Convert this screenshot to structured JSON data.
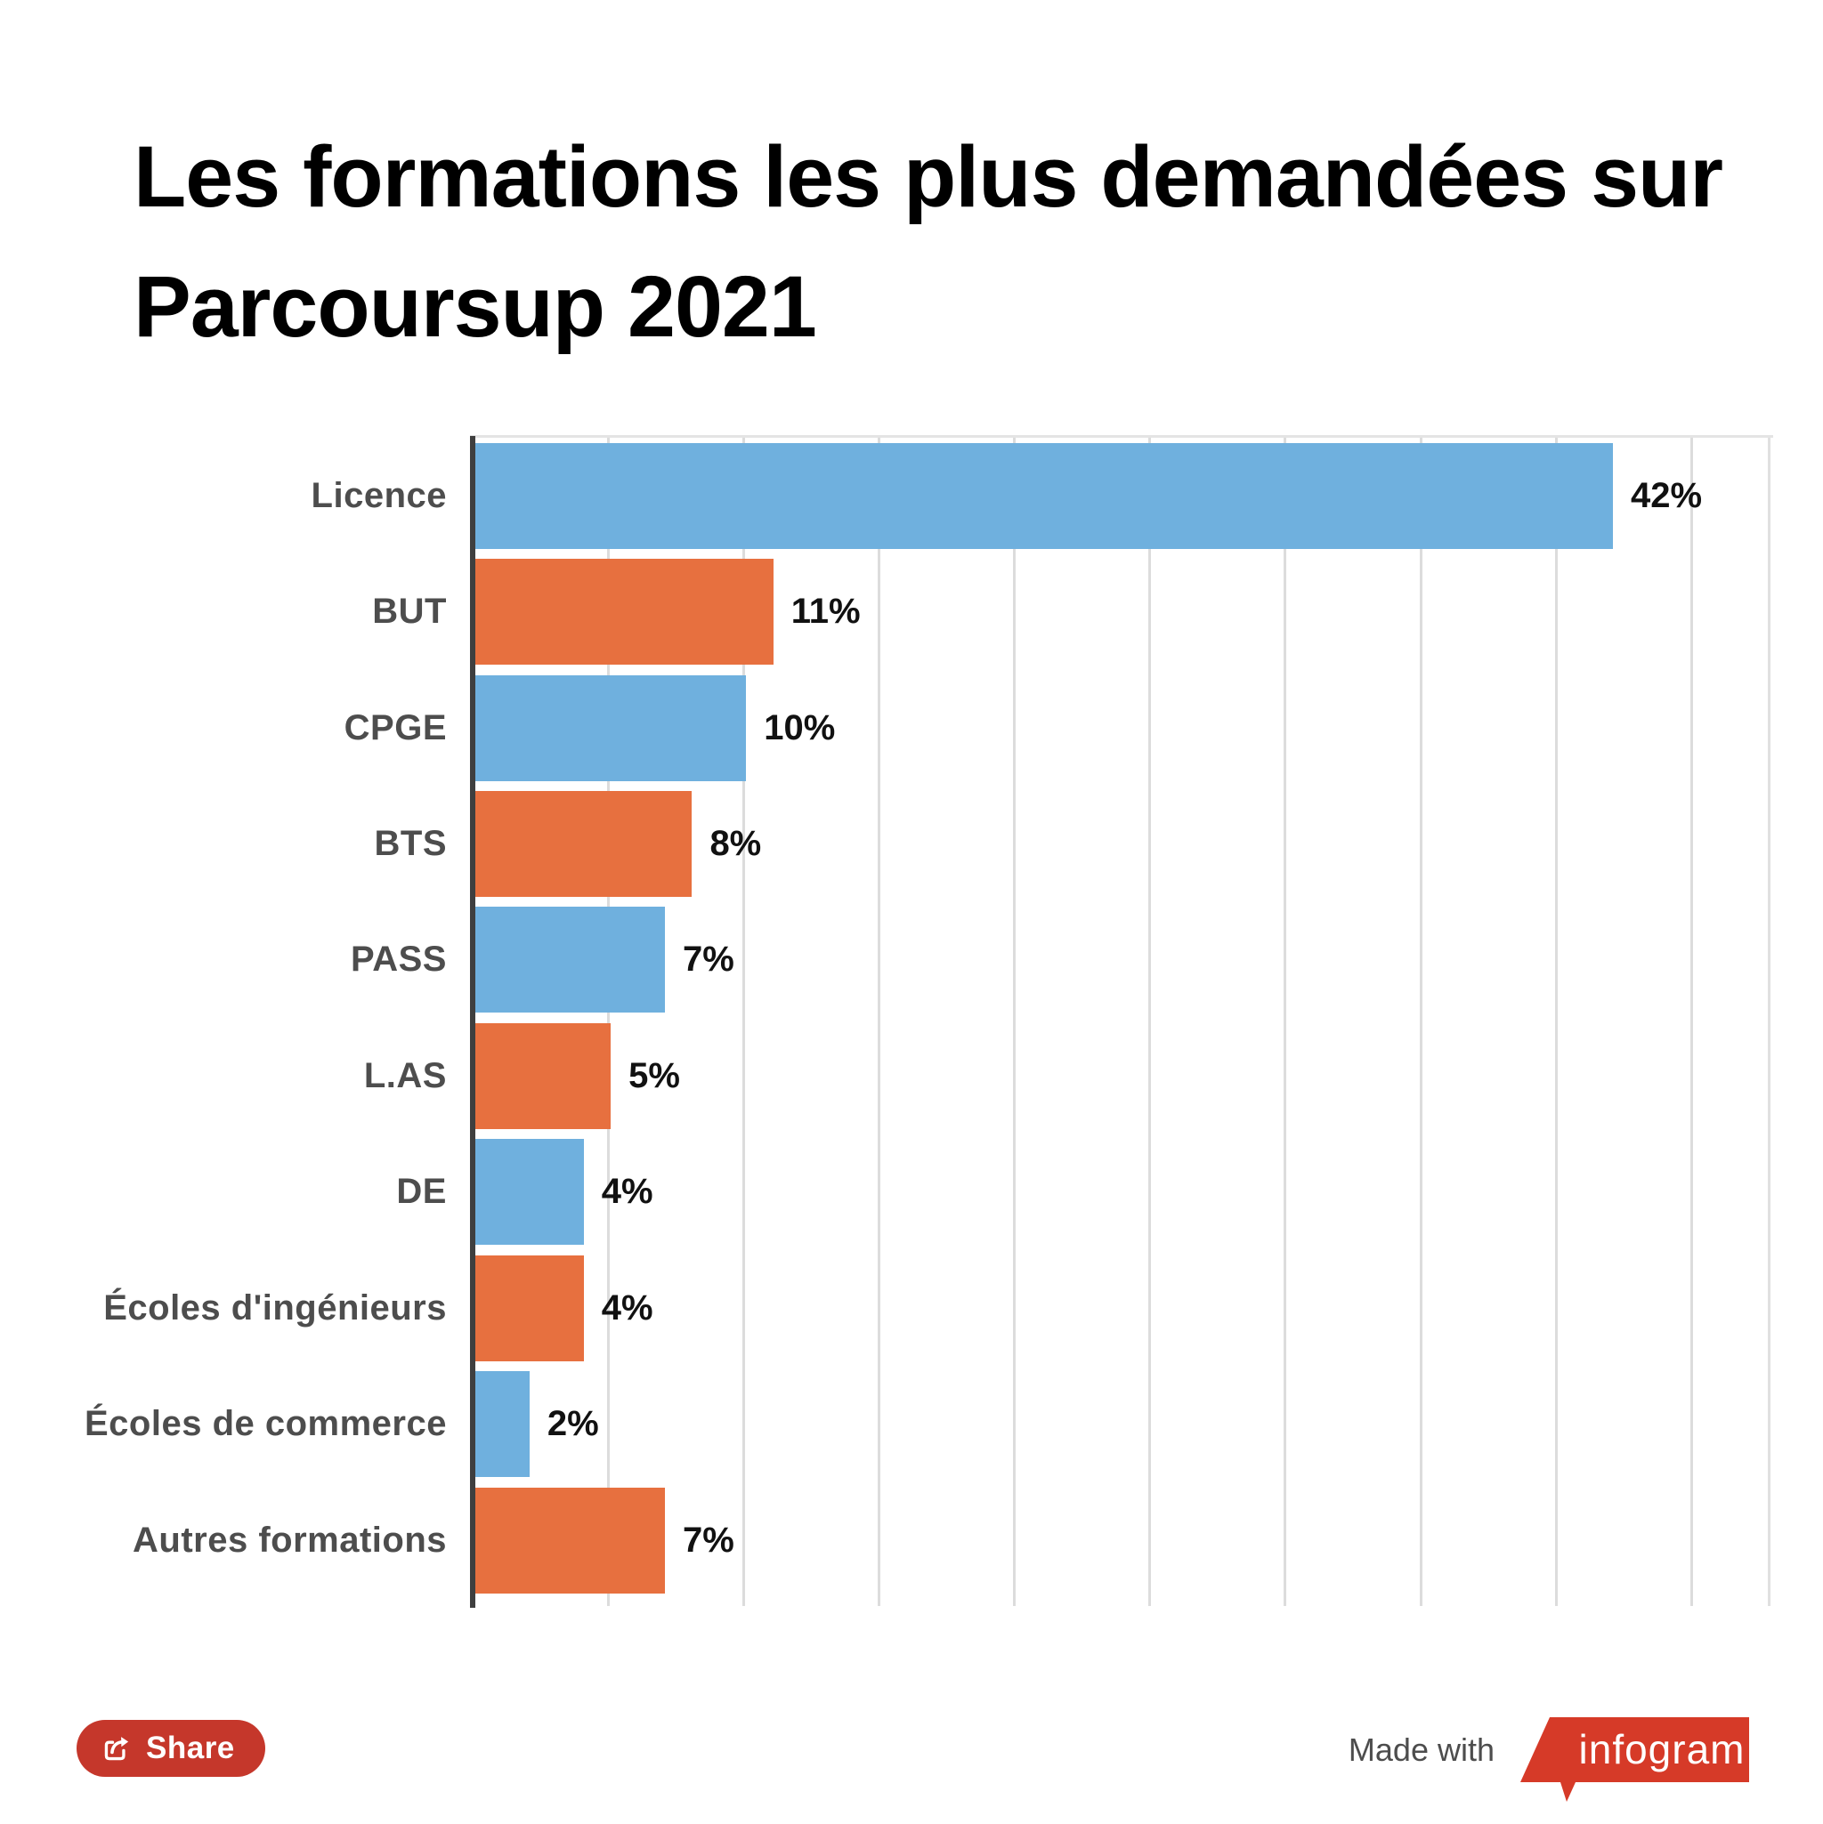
{
  "title": "Les formations les plus demandées sur Parcoursup 2021",
  "chart_data": {
    "type": "bar",
    "orientation": "horizontal",
    "title": "Les formations les plus demandées sur Parcoursup 2021",
    "categories": [
      "Licence",
      "BUT",
      "CPGE",
      "BTS",
      "PASS",
      "L.AS",
      "DE",
      "Écoles d'ingénieurs",
      "Écoles de commerce",
      "Autres formations"
    ],
    "values": [
      42,
      11,
      10,
      8,
      7,
      5,
      4,
      4,
      2,
      7
    ],
    "value_labels": [
      "42%",
      "11%",
      "10%",
      "8%",
      "7%",
      "5%",
      "4%",
      "4%",
      "2%",
      "7%"
    ],
    "bar_colors": [
      "#6fb0de",
      "#e7703f",
      "#6fb0de",
      "#e7703f",
      "#6fb0de",
      "#e7703f",
      "#6fb0de",
      "#e7703f",
      "#6fb0de",
      "#e7703f"
    ],
    "xlabel": "",
    "ylabel": "",
    "xlim": [
      0,
      45
    ],
    "gridline_interval_pct": 5,
    "grid": true,
    "legend": "none"
  },
  "footer": {
    "share_label": "Share",
    "made_with_label": "Made with",
    "brand_name": "infogram"
  },
  "colors": {
    "bar_blue": "#6fb0de",
    "bar_orange": "#e7703f",
    "share_button_bg": "#c5372b",
    "brand_red": "#d63a28",
    "axis": "#3f3f3f",
    "gridline": "#dcdcdc",
    "category_label": "#4d4d4d",
    "value_label": "#111111",
    "title_color": "#000000"
  }
}
